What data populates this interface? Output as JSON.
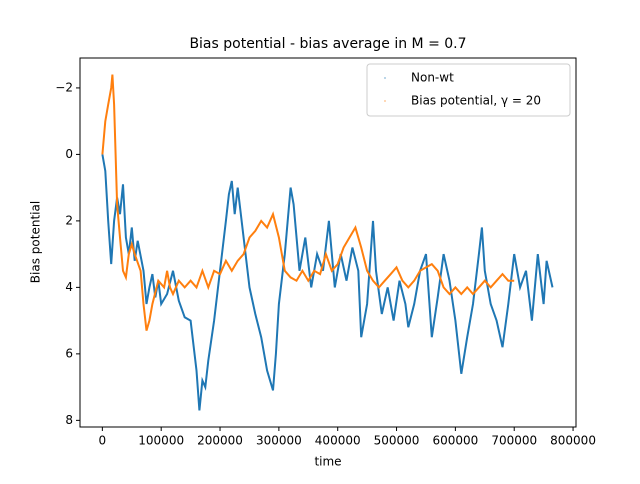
{
  "chart_data": {
    "type": "line",
    "title": "Bias potential - bias average in M = 0.7",
    "x_label": "time",
    "y_label": "Bias potential",
    "xlim": [
      -38000,
      805000
    ],
    "ylim": [
      -2.9,
      8.2
    ],
    "y_inverted": true,
    "xticks": [
      0,
      100000,
      200000,
      300000,
      400000,
      500000,
      600000,
      700000,
      800000
    ],
    "yticks": [
      {
        "value": -2,
        "label": "−2"
      },
      0,
      2,
      4,
      6,
      8
    ],
    "legend": "upper right",
    "series": [
      {
        "name": "Non-wt",
        "color": "#1f77b4",
        "x": [
          0,
          5000,
          10000,
          15000,
          20000,
          25000,
          30000,
          35000,
          40000,
          45000,
          50000,
          55000,
          60000,
          70000,
          75000,
          80000,
          85000,
          90000,
          95000,
          100000,
          110000,
          120000,
          130000,
          140000,
          150000,
          160000,
          165000,
          170000,
          175000,
          180000,
          190000,
          200000,
          210000,
          215000,
          220000,
          225000,
          230000,
          240000,
          250000,
          260000,
          270000,
          280000,
          290000,
          295000,
          300000,
          310000,
          320000,
          325000,
          335000,
          345000,
          355000,
          365000,
          375000,
          385000,
          395000,
          405000,
          415000,
          425000,
          435000,
          440000,
          450000,
          460000,
          465000,
          475000,
          485000,
          495000,
          505000,
          515000,
          520000,
          530000,
          540000,
          550000,
          560000,
          570000,
          580000,
          590000,
          600000,
          610000,
          620000,
          630000,
          640000,
          645000,
          650000,
          660000,
          670000,
          680000,
          690000,
          700000,
          710000,
          720000,
          730000,
          740000,
          750000,
          755000,
          765000
        ],
        "values": [
          0,
          0.5,
          2,
          3.3,
          2.0,
          1.3,
          1.8,
          0.9,
          2.5,
          3.0,
          2.2,
          3.2,
          2.6,
          3.5,
          4.5,
          4.0,
          3.6,
          4.3,
          3.8,
          4.5,
          4.2,
          3.5,
          4.4,
          4.9,
          5.0,
          6.5,
          7.7,
          6.8,
          7.0,
          6.2,
          5.0,
          3.5,
          2.0,
          1.2,
          0.8,
          1.8,
          1.0,
          2.5,
          4.0,
          4.8,
          5.5,
          6.5,
          7.1,
          6.0,
          4.5,
          3.0,
          1.0,
          1.5,
          3.5,
          2.5,
          4.0,
          3.0,
          3.5,
          2.0,
          4.0,
          3.0,
          3.8,
          2.8,
          3.5,
          5.5,
          4.5,
          2.0,
          3.5,
          4.8,
          4.0,
          5.0,
          3.8,
          4.5,
          5.2,
          4.5,
          3.5,
          3.0,
          5.5,
          4.3,
          3.0,
          3.8,
          5.0,
          6.6,
          5.5,
          4.5,
          3.0,
          2.2,
          3.5,
          4.5,
          5.0,
          5.8,
          4.5,
          3.0,
          4.0,
          3.5,
          5.0,
          3.0,
          4.5,
          3.2,
          4.0
        ]
      },
      {
        "name": "Bias potential, γ = 20",
        "color": "#ff7f0e",
        "x": [
          0,
          5000,
          10000,
          15000,
          17000,
          20000,
          25000,
          30000,
          35000,
          40000,
          45000,
          50000,
          55000,
          65000,
          70000,
          75000,
          80000,
          85000,
          95000,
          105000,
          110000,
          115000,
          120000,
          130000,
          140000,
          150000,
          160000,
          170000,
          180000,
          190000,
          200000,
          210000,
          220000,
          230000,
          240000,
          250000,
          260000,
          270000,
          280000,
          290000,
          300000,
          310000,
          320000,
          330000,
          340000,
          350000,
          360000,
          370000,
          380000,
          390000,
          400000,
          410000,
          420000,
          430000,
          440000,
          450000,
          460000,
          470000,
          480000,
          490000,
          500000,
          510000,
          520000,
          530000,
          540000,
          550000,
          560000,
          570000,
          580000,
          590000,
          600000,
          610000,
          620000,
          630000,
          640000,
          650000,
          660000,
          670000,
          680000,
          690000,
          700000
        ],
        "values": [
          0,
          -1.0,
          -1.5,
          -2.0,
          -2.4,
          -1.5,
          1.5,
          2.5,
          3.5,
          3.7,
          3.0,
          2.7,
          3.0,
          3.5,
          4.5,
          5.3,
          5.0,
          4.5,
          3.8,
          4.0,
          3.5,
          4.0,
          4.2,
          3.8,
          4.0,
          3.8,
          4.0,
          3.5,
          4.0,
          3.5,
          3.6,
          3.2,
          3.5,
          3.2,
          3.0,
          2.5,
          2.3,
          2.0,
          2.2,
          1.8,
          2.5,
          3.5,
          3.7,
          3.8,
          3.5,
          3.8,
          3.5,
          3.6,
          3.0,
          3.5,
          3.3,
          2.8,
          2.5,
          2.2,
          2.8,
          3.5,
          3.8,
          4.0,
          3.8,
          3.6,
          3.4,
          3.8,
          4.0,
          3.8,
          3.5,
          3.4,
          3.3,
          3.5,
          4.0,
          4.2,
          4.0,
          4.2,
          4.0,
          4.2,
          4.0,
          3.8,
          4.0,
          3.8,
          3.6,
          3.8,
          3.8
        ]
      }
    ]
  }
}
